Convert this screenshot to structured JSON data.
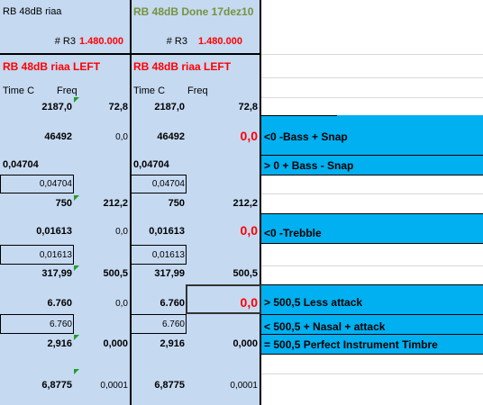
{
  "left": {
    "title": "RB 48dB riaa",
    "r3_label": "# R3",
    "r3_value": "1.480.000",
    "section_title": "RB 48dB riaa LEFT",
    "time_header": "Time C",
    "freq_header": "Freq",
    "t1": "2187,0",
    "f1": "72,8",
    "v1": "46492",
    "z1": "0,0",
    "v2": "0,04704",
    "v2b": "0,04704",
    "t2": "750",
    "f2": "212,2",
    "v3": "0,01613",
    "z3": "0,0",
    "v3b": "0,01613",
    "t3": "317,99",
    "f3": "500,5",
    "v4": "6.760",
    "z4": "0,0",
    "v4b": "6.760",
    "v5": "2,916",
    "f5": "0,000",
    "v6": "6,8775",
    "f6": "0,0001"
  },
  "right": {
    "title": "RB 48dB Done 17dez10",
    "r3_label": "# R3",
    "r3_value": "1.480.000",
    "section_title": "RB 48dB riaa LEFT",
    "time_header": "Time C",
    "freq_header": "Freq",
    "t1": "2187,0",
    "f1": "72,8",
    "v1": "46492",
    "z1": "0,0",
    "v2": "0,04704",
    "v2b": "0,04704",
    "t2": "750",
    "f2": "212,2",
    "v3": "0,01613",
    "z3": "0,0",
    "v3b": "0,01613",
    "t3": "317,99",
    "f3": "500,5",
    "v4": "6.760",
    "z4": "0,0",
    "v4b": "6.760",
    "v5": "2,916",
    "f5": "0,000",
    "v6": "6,8775",
    "f6": "0,0001"
  },
  "notes": {
    "bass_minus": "<0 -Bass + Snap",
    "bass_plus": "> 0 + Bass - Snap",
    "treble": "<0 -Trebble",
    "less_attack": "> 500,5 Less attack",
    "nasal": "< 500,5 + Nasal + attack",
    "perfect": "= 500,5 Perfect Instrument Timbre"
  },
  "colors": {
    "cell_blue": "#c5d9f1",
    "highlight": "#00b0f0",
    "red": "#ff0000",
    "olive": "#76923c"
  }
}
